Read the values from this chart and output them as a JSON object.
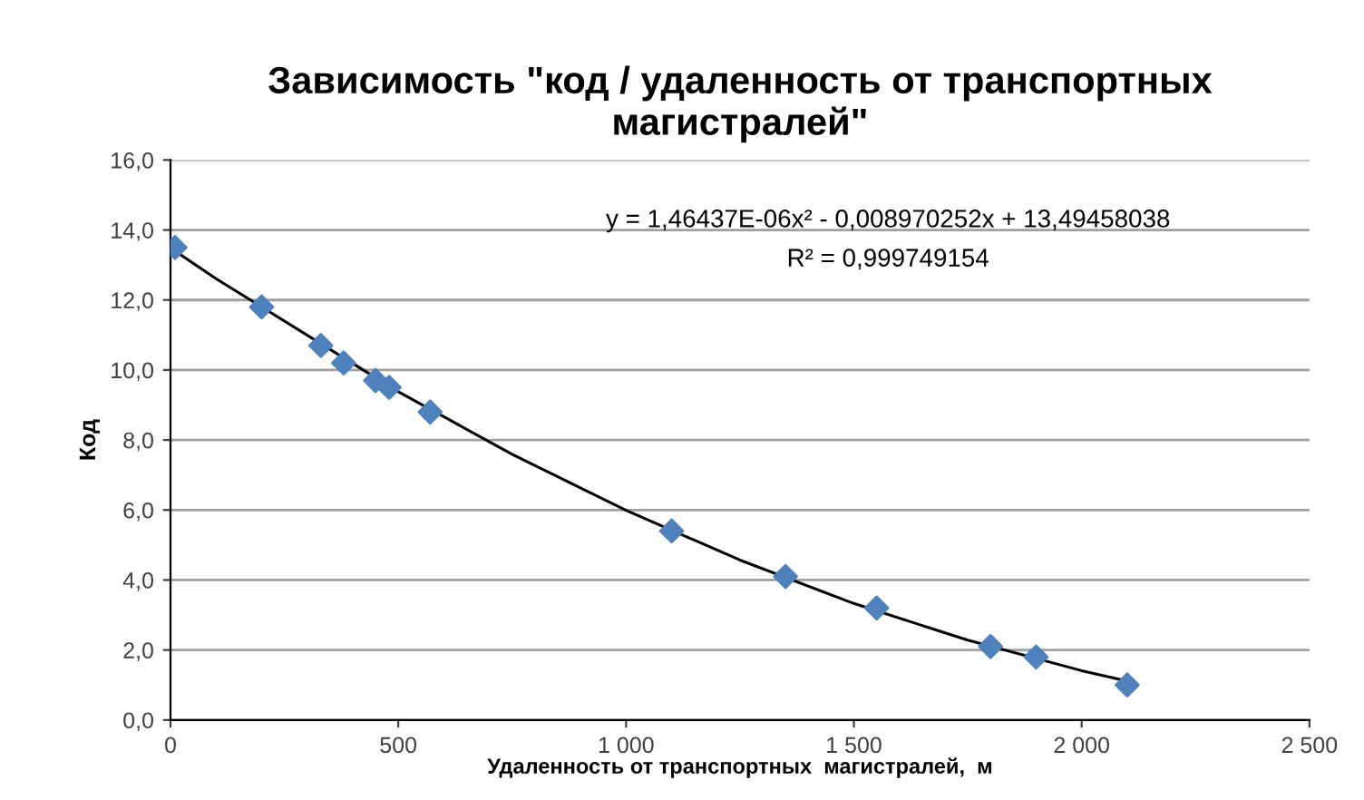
{
  "chart_data": {
    "type": "scatter",
    "title": "Зависимость \"код / удаленность от транспортных\nмагистралей\"",
    "xlabel": "Удаленность от транспортных  магистралей,  м",
    "ylabel": "Код",
    "annotations": [
      "y = 1,46437E-06x² - 0,008970252x + 13,49458038",
      "R² = 0,999749154"
    ],
    "series": [
      {
        "color": "#4f81bd",
        "marker": "diamond",
        "x": [
          10,
          200,
          330,
          380,
          450,
          480,
          570,
          1100,
          1350,
          1550,
          1800,
          1900,
          2100
        ],
        "values": [
          13.5,
          11.8,
          10.7,
          10.2,
          9.7,
          9.5,
          8.8,
          5.4,
          4.1,
          3.2,
          2.1,
          1.8,
          1.0
        ]
      },
      {
        "type": "line",
        "color": "#000000",
        "marker": "none",
        "line_style": "solid",
        "x": [
          10,
          100,
          500,
          750,
          1000,
          1250,
          1500,
          1750,
          2000,
          2100
        ],
        "values": [
          13.4,
          12.61,
          9.38,
          7.59,
          5.99,
          4.57,
          3.33,
          2.28,
          1.41,
          1.11
        ]
      }
    ],
    "xlim": [
      0,
      2500
    ],
    "xticks": [
      0,
      500,
      {
        "value": 1000,
        "label": "1 000"
      },
      {
        "value": 1500,
        "label": "1 500"
      },
      {
        "value": 2000,
        "label": "2 000"
      },
      {
        "value": 2500,
        "label": "2 500"
      }
    ],
    "ylim": [
      0,
      16
    ],
    "yticks": [
      {
        "value": 0,
        "label": "0,0"
      },
      {
        "value": 2,
        "label": "2,0"
      },
      {
        "value": 4,
        "label": "4,0"
      },
      {
        "value": 6,
        "label": "6,0"
      },
      {
        "value": 8,
        "label": "8,0"
      },
      {
        "value": 10,
        "label": "10,0"
      },
      {
        "value": 12,
        "label": "12,0"
      },
      {
        "value": 14,
        "label": "14,0"
      },
      {
        "value": 16,
        "label": "16,0"
      }
    ],
    "grid": "y",
    "legend": false
  }
}
